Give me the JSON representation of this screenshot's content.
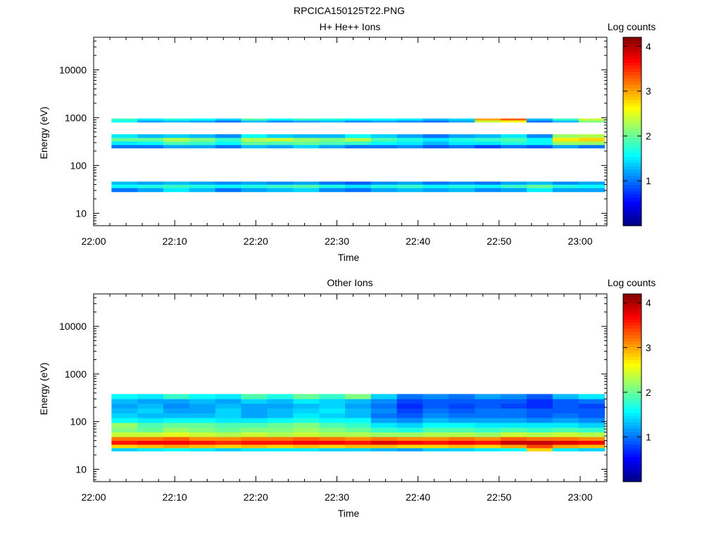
{
  "figure_title": "RPCICA150125T22.PNG",
  "chart_data": [
    {
      "type": "heatmap",
      "title": "H+ He++ Ions",
      "xlabel": "Time",
      "ylabel": "Energy (eV)",
      "x_ticks": [
        "22:00",
        "22:10",
        "22:20",
        "22:30",
        "22:40",
        "22:50",
        "23:00"
      ],
      "x_tick_minutes": [
        0,
        10,
        20,
        30,
        40,
        50,
        60
      ],
      "xlim_minutes": [
        0,
        63.3
      ],
      "y_scale": "log",
      "ylim": [
        5.5,
        48000
      ],
      "y_ticks": [
        "10",
        "100",
        "1000",
        "10000"
      ],
      "y_tick_values": [
        10,
        100,
        1000,
        10000
      ],
      "colorbar_label": "Log counts",
      "colorbar_range": [
        0,
        4.2
      ],
      "colorbar_ticks": [
        "1",
        "2",
        "3",
        "4"
      ],
      "colorbar_tick_values": [
        1,
        2,
        3,
        4
      ],
      "time_bin_starts_minutes": [
        2.2,
        5.4,
        8.6,
        11.8,
        15.0,
        18.2,
        21.4,
        24.6,
        27.8,
        31.0,
        34.2,
        37.4,
        40.6,
        43.8,
        47.0,
        50.2,
        53.4,
        56.6,
        59.8
      ],
      "time_bin_width_minutes": 3.2,
      "bands": [
        {
          "e_min": 28,
          "e_max": 34,
          "values": [
            1.0,
            1.2,
            1.5,
            1.3,
            1.0,
            1.2,
            1.3,
            1.4,
            1.1,
            1.0,
            1.2,
            1.3,
            1.2,
            1.3,
            1.1,
            1.2,
            1.5,
            1.2,
            1.2
          ]
        },
        {
          "e_min": 34,
          "e_max": 40,
          "values": [
            1.6,
            1.7,
            1.8,
            1.7,
            1.6,
            1.7,
            1.8,
            1.9,
            1.7,
            1.5,
            1.7,
            1.8,
            1.6,
            1.7,
            1.6,
            1.8,
            2.0,
            1.7,
            1.6
          ]
        },
        {
          "e_min": 40,
          "e_max": 46,
          "values": [
            1.3,
            1.2,
            1.3,
            1.2,
            1.1,
            1.2,
            1.1,
            1.2,
            1.0,
            0.9,
            1.1,
            1.2,
            1.0,
            1.1,
            1.0,
            1.2,
            1.3,
            1.1,
            1.2
          ]
        },
        {
          "e_min": 230,
          "e_max": 270,
          "values": [
            1.0,
            1.0,
            1.2,
            1.2,
            1.0,
            1.3,
            1.2,
            1.4,
            1.2,
            1.0,
            1.0,
            1.1,
            0.9,
            1.0,
            0.8,
            1.0,
            0.9,
            1.2,
            1.0
          ]
        },
        {
          "e_min": 270,
          "e_max": 320,
          "values": [
            1.5,
            1.6,
            1.9,
            1.8,
            1.6,
            2.0,
            1.9,
            2.0,
            1.9,
            1.8,
            1.6,
            1.5,
            1.3,
            1.5,
            1.5,
            1.7,
            1.6,
            2.2,
            2.2
          ]
        },
        {
          "e_min": 320,
          "e_max": 380,
          "values": [
            2.0,
            2.0,
            2.3,
            2.1,
            1.8,
            2.3,
            2.4,
            2.2,
            2.1,
            2.3,
            1.9,
            1.7,
            1.5,
            1.7,
            1.8,
            1.9,
            1.6,
            2.7,
            2.8
          ]
        },
        {
          "e_min": 380,
          "e_max": 450,
          "values": [
            1.5,
            1.3,
            1.4,
            1.3,
            1.1,
            1.6,
            1.4,
            1.3,
            1.3,
            1.6,
            1.4,
            1.2,
            1.0,
            1.2,
            1.3,
            1.5,
            1.1,
            2.2,
            2.3
          ]
        },
        {
          "e_min": 800,
          "e_max": 880,
          "values": [
            1.6,
            1.2,
            1.3,
            1.2,
            1.0,
            1.3,
            1.1,
            1.2,
            1.3,
            1.1,
            1.2,
            1.1,
            1.0,
            1.2,
            2.4,
            2.6,
            1.0,
            1.3,
            2.1
          ]
        },
        {
          "e_min": 880,
          "e_max": 960,
          "values": [
            1.8,
            1.5,
            1.7,
            1.6,
            1.4,
            1.9,
            1.6,
            1.8,
            1.7,
            1.6,
            1.6,
            1.5,
            1.3,
            1.4,
            3.0,
            3.3,
            1.3,
            1.8,
            2.4
          ]
        }
      ]
    },
    {
      "type": "heatmap",
      "title": "Other Ions",
      "xlabel": "Time",
      "ylabel": "Energy (eV)",
      "x_ticks": [
        "22:00",
        "22:10",
        "22:20",
        "22:30",
        "22:40",
        "22:50",
        "23:00"
      ],
      "x_tick_minutes": [
        0,
        10,
        20,
        30,
        40,
        50,
        60
      ],
      "xlim_minutes": [
        0,
        63.3
      ],
      "y_scale": "log",
      "ylim": [
        5.5,
        48000
      ],
      "y_ticks": [
        "10",
        "100",
        "1000",
        "10000"
      ],
      "y_tick_values": [
        10,
        100,
        1000,
        10000
      ],
      "colorbar_label": "Log counts",
      "colorbar_range": [
        0,
        4.2
      ],
      "colorbar_ticks": [
        "1",
        "2",
        "3",
        "4"
      ],
      "colorbar_tick_values": [
        1,
        2,
        3,
        4
      ],
      "time_bin_starts_minutes": [
        2.2,
        5.4,
        8.6,
        11.8,
        15.0,
        18.2,
        21.4,
        24.6,
        27.8,
        31.0,
        34.2,
        37.4,
        40.6,
        43.8,
        47.0,
        50.2,
        53.4,
        56.6,
        59.8
      ],
      "time_bin_width_minutes": 3.2,
      "bands": [
        {
          "e_min": 24,
          "e_max": 28,
          "values": [
            1.4,
            1.5,
            1.6,
            1.5,
            1.4,
            1.5,
            1.5,
            1.5,
            1.4,
            1.4,
            1.3,
            1.2,
            1.4,
            1.4,
            1.5,
            1.6,
            2.8,
            1.5,
            1.4
          ]
        },
        {
          "e_min": 28,
          "e_max": 33,
          "values": [
            2.8,
            2.9,
            3.0,
            2.9,
            2.8,
            2.9,
            2.8,
            2.9,
            2.8,
            2.9,
            2.9,
            2.8,
            2.8,
            2.9,
            2.8,
            3.0,
            3.4,
            3.0,
            2.9
          ]
        },
        {
          "e_min": 33,
          "e_max": 40,
          "values": [
            3.6,
            3.7,
            3.7,
            3.6,
            3.5,
            3.6,
            3.6,
            3.7,
            3.7,
            3.6,
            3.8,
            3.7,
            3.6,
            3.7,
            3.6,
            3.9,
            3.9,
            3.8,
            3.7
          ]
        },
        {
          "e_min": 40,
          "e_max": 48,
          "values": [
            3.2,
            3.2,
            3.3,
            3.1,
            3.1,
            3.2,
            3.2,
            3.3,
            3.2,
            3.1,
            3.2,
            3.1,
            3.1,
            3.2,
            3.1,
            3.3,
            3.2,
            3.2,
            3.1
          ]
        },
        {
          "e_min": 48,
          "e_max": 60,
          "values": [
            2.4,
            2.4,
            2.5,
            2.4,
            2.3,
            2.4,
            2.3,
            2.4,
            2.3,
            2.3,
            2.2,
            2.2,
            2.3,
            2.3,
            2.2,
            2.4,
            2.3,
            2.4,
            2.3
          ]
        },
        {
          "e_min": 60,
          "e_max": 75,
          "values": [
            2.1,
            2.0,
            2.2,
            2.1,
            2.0,
            2.1,
            2.1,
            2.2,
            2.1,
            2.0,
            1.8,
            1.7,
            1.9,
            1.9,
            1.8,
            1.9,
            1.8,
            1.9,
            1.8
          ]
        },
        {
          "e_min": 75,
          "e_max": 95,
          "values": [
            2.2,
            1.9,
            2.0,
            2.0,
            1.9,
            1.9,
            2.0,
            2.1,
            1.9,
            1.8,
            1.5,
            1.4,
            1.6,
            1.6,
            1.5,
            1.5,
            1.5,
            1.5,
            1.4
          ]
        },
        {
          "e_min": 95,
          "e_max": 120,
          "values": [
            1.6,
            1.5,
            1.6,
            1.6,
            1.5,
            1.5,
            1.6,
            1.7,
            1.6,
            1.6,
            1.2,
            1.1,
            1.3,
            1.2,
            1.2,
            1.2,
            1.1,
            1.2,
            1.1
          ]
        },
        {
          "e_min": 120,
          "e_max": 150,
          "values": [
            1.4,
            1.3,
            1.3,
            1.3,
            1.4,
            1.2,
            1.3,
            1.5,
            1.4,
            1.3,
            1.0,
            0.9,
            1.1,
            1.0,
            1.0,
            1.0,
            0.9,
            1.0,
            0.9
          ]
        },
        {
          "e_min": 150,
          "e_max": 190,
          "values": [
            1.3,
            1.4,
            1.2,
            1.2,
            1.4,
            1.2,
            1.3,
            1.4,
            1.5,
            1.3,
            1.1,
            0.8,
            1.0,
            0.9,
            1.0,
            1.0,
            0.9,
            0.9,
            0.9
          ]
        },
        {
          "e_min": 190,
          "e_max": 240,
          "values": [
            1.2,
            1.3,
            1.1,
            1.2,
            1.3,
            1.2,
            1.2,
            1.3,
            1.4,
            1.2,
            1.0,
            0.7,
            0.9,
            0.8,
            0.9,
            0.8,
            0.7,
            0.9,
            0.8
          ]
        },
        {
          "e_min": 240,
          "e_max": 300,
          "values": [
            1.3,
            1.2,
            1.2,
            1.3,
            1.2,
            1.4,
            1.3,
            1.5,
            1.4,
            1.3,
            1.1,
            0.8,
            0.9,
            0.9,
            0.9,
            0.9,
            0.7,
            0.9,
            1.0
          ]
        },
        {
          "e_min": 300,
          "e_max": 380,
          "values": [
            1.6,
            1.5,
            1.8,
            1.6,
            1.5,
            1.9,
            1.7,
            2.0,
            1.8,
            2.1,
            1.4,
            1.0,
            1.1,
            1.0,
            1.2,
            1.1,
            0.9,
            1.3,
            1.5
          ]
        }
      ]
    }
  ]
}
